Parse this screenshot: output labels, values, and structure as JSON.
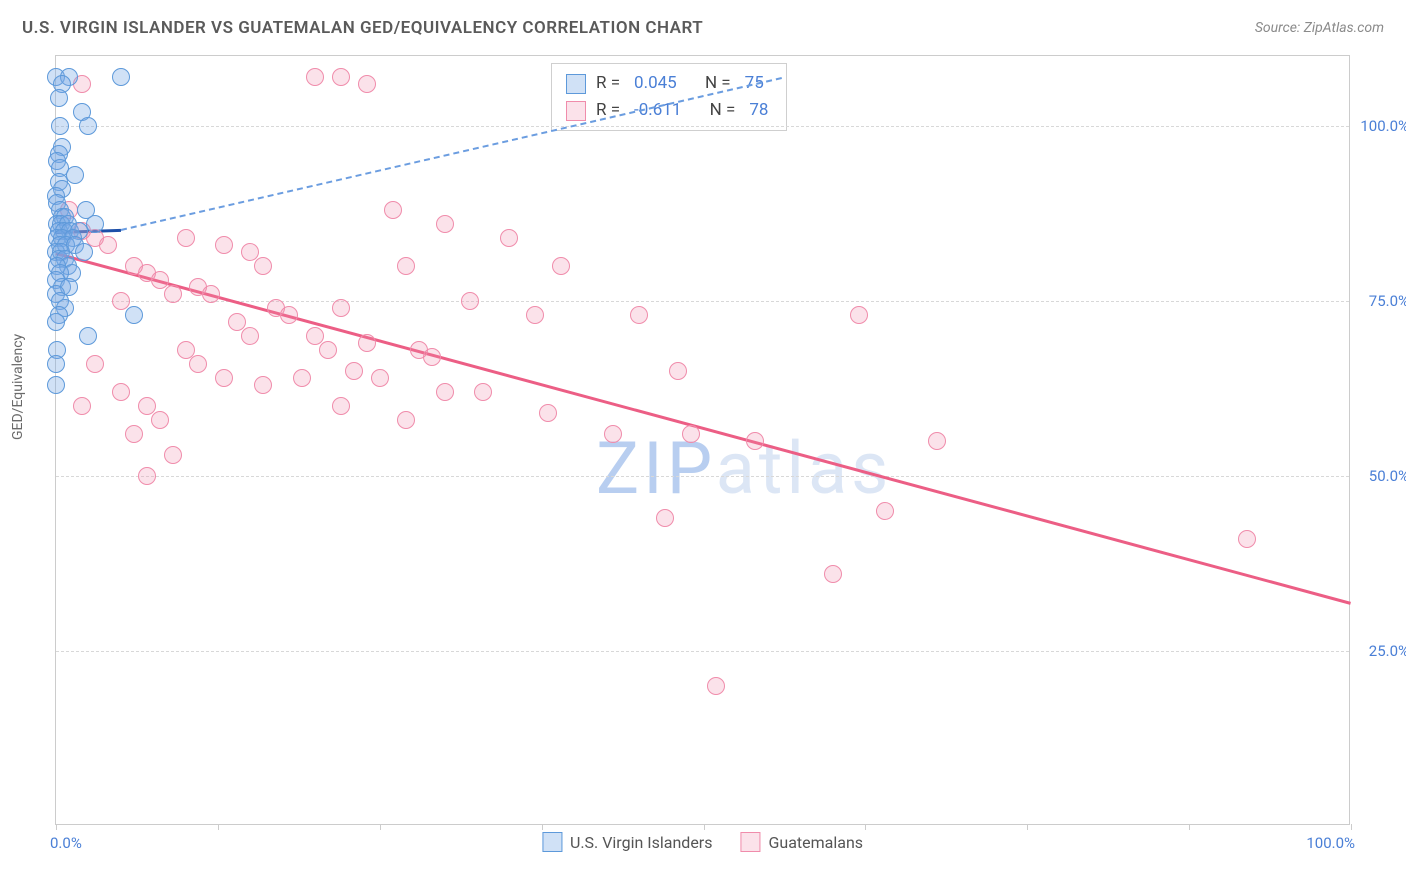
{
  "title": "U.S. VIRGIN ISLANDER VS GUATEMALAN GED/EQUIVALENCY CORRELATION CHART",
  "source": "Source: ZipAtlas.com",
  "ylabel": "GED/Equivalency",
  "watermark_a": "ZIP",
  "watermark_b": "atlas",
  "chart": {
    "xlim": [
      0,
      100
    ],
    "ylim": [
      0,
      110
    ],
    "yticks": [
      25.0,
      50.0,
      75.0,
      100.0
    ],
    "ytick_labels": [
      "25.0%",
      "50.0%",
      "75.0%",
      "100.0%"
    ],
    "xtick_positions": [
      0,
      12.5,
      25,
      37.5,
      50,
      62.5,
      75,
      87.5,
      100
    ],
    "x_left_label": "0.0%",
    "x_right_label": "100.0%",
    "marker_radius": 9,
    "colors": {
      "blue_fill": "rgba(120,170,230,0.35)",
      "blue_stroke": "#5d99da",
      "pink_fill": "rgba(240,140,170,0.25)",
      "pink_stroke": "#f08cab",
      "trend_pink": "#ec5e85",
      "trend_blue_solid": "#1d4fa8",
      "trend_blue_dash": "#6b9de0",
      "grid": "#d8d8d8",
      "axis_text": "#4a7fd6"
    },
    "series_blue": {
      "label": "U.S. Virgin Islanders",
      "R": "0.045",
      "N": "75",
      "trend_solid": {
        "x1": 0,
        "y1": 85,
        "x2": 5,
        "y2": 85.3
      },
      "trend_dashed": {
        "x1": 5,
        "y1": 85.3,
        "x2": 56,
        "y2": 107
      },
      "points": [
        [
          0,
          107
        ],
        [
          1,
          107
        ],
        [
          0.5,
          106
        ],
        [
          5,
          107
        ],
        [
          0.2,
          104
        ],
        [
          2,
          102
        ],
        [
          0.3,
          100
        ],
        [
          2.5,
          100
        ],
        [
          0.5,
          97
        ],
        [
          0.2,
          96
        ],
        [
          0.1,
          95
        ],
        [
          0.3,
          94
        ],
        [
          1.5,
          93
        ],
        [
          0.2,
          92
        ],
        [
          0.5,
          91
        ],
        [
          0,
          90
        ],
        [
          0.1,
          89
        ],
        [
          0.3,
          88
        ],
        [
          2.3,
          88
        ],
        [
          0.5,
          87
        ],
        [
          0.7,
          87
        ],
        [
          0.1,
          86
        ],
        [
          0.4,
          86
        ],
        [
          0.9,
          86
        ],
        [
          3,
          86
        ],
        [
          0.2,
          85
        ],
        [
          0.6,
          85
        ],
        [
          1.1,
          85
        ],
        [
          1.8,
          85
        ],
        [
          0.1,
          84
        ],
        [
          0.5,
          84
        ],
        [
          1.3,
          84
        ],
        [
          0.3,
          83
        ],
        [
          0.8,
          83
        ],
        [
          1.5,
          83
        ],
        [
          2.2,
          82
        ],
        [
          0,
          82
        ],
        [
          0.4,
          82
        ],
        [
          0.2,
          81
        ],
        [
          0.7,
          81
        ],
        [
          0.9,
          80
        ],
        [
          0.1,
          80
        ],
        [
          1.2,
          79
        ],
        [
          0.3,
          79
        ],
        [
          0,
          78
        ],
        [
          0.5,
          77
        ],
        [
          1,
          77
        ],
        [
          0,
          76
        ],
        [
          0.3,
          75
        ],
        [
          0.7,
          74
        ],
        [
          6,
          73
        ],
        [
          0.2,
          73
        ],
        [
          0,
          72
        ],
        [
          2.5,
          70
        ],
        [
          0.1,
          68
        ],
        [
          0,
          66
        ],
        [
          0,
          63
        ]
      ]
    },
    "series_pink": {
      "label": "Guatemalans",
      "R": "-0.611",
      "N": "78",
      "trend": {
        "x1": 0,
        "y1": 82,
        "x2": 100,
        "y2": 32
      },
      "points": [
        [
          2,
          106
        ],
        [
          20,
          107
        ],
        [
          22,
          107
        ],
        [
          24,
          106
        ],
        [
          1,
          88
        ],
        [
          26,
          88
        ],
        [
          30,
          86
        ],
        [
          35,
          84
        ],
        [
          2,
          85
        ],
        [
          3,
          84
        ],
        [
          4,
          83
        ],
        [
          10,
          84
        ],
        [
          13,
          83
        ],
        [
          15,
          82
        ],
        [
          16,
          80
        ],
        [
          27,
          80
        ],
        [
          39,
          80
        ],
        [
          6,
          80
        ],
        [
          7,
          79
        ],
        [
          8,
          78
        ],
        [
          9,
          76
        ],
        [
          11,
          77
        ],
        [
          12,
          76
        ],
        [
          5,
          75
        ],
        [
          32,
          75
        ],
        [
          37,
          73
        ],
        [
          17,
          74
        ],
        [
          18,
          73
        ],
        [
          22,
          74
        ],
        [
          45,
          73
        ],
        [
          62,
          73
        ],
        [
          14,
          72
        ],
        [
          15,
          70
        ],
        [
          20,
          70
        ],
        [
          21,
          68
        ],
        [
          24,
          69
        ],
        [
          28,
          68
        ],
        [
          10,
          68
        ],
        [
          29,
          67
        ],
        [
          23,
          65
        ],
        [
          25,
          64
        ],
        [
          48,
          65
        ],
        [
          11,
          66
        ],
        [
          13,
          64
        ],
        [
          19,
          64
        ],
        [
          16,
          63
        ],
        [
          30,
          62
        ],
        [
          33,
          62
        ],
        [
          22,
          60
        ],
        [
          38,
          59
        ],
        [
          27,
          58
        ],
        [
          3,
          66
        ],
        [
          43,
          56
        ],
        [
          49,
          56
        ],
        [
          54,
          55
        ],
        [
          2,
          60
        ],
        [
          5,
          62
        ],
        [
          7,
          60
        ],
        [
          8,
          58
        ],
        [
          6,
          56
        ],
        [
          68,
          55
        ],
        [
          9,
          53
        ],
        [
          47,
          44
        ],
        [
          64,
          45
        ],
        [
          92,
          41
        ],
        [
          7,
          50
        ],
        [
          60,
          36
        ],
        [
          51,
          20
        ]
      ]
    }
  },
  "stats_box": {
    "r_label": "R =",
    "n_label": "N ="
  }
}
